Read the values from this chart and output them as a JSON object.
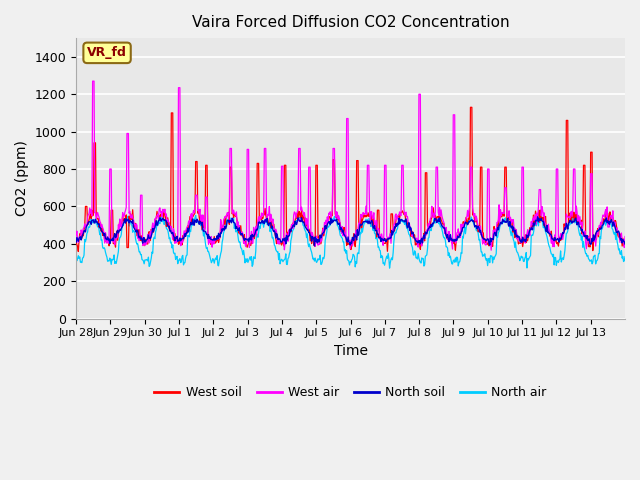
{
  "title": "Vaira Forced Diffusion CO2 Concentration",
  "xlabel": "Time",
  "ylabel": "CO2 (ppm)",
  "ylim": [
    0,
    1500
  ],
  "yticks": [
    0,
    200,
    400,
    600,
    800,
    1000,
    1200,
    1400
  ],
  "xtick_labels": [
    "Jun 28",
    "Jun 29",
    "Jun 30",
    "Jul 1",
    "Jul 2",
    "Jul 3",
    "Jul 4",
    "Jul 5",
    "Jul 6",
    "Jul 7",
    "Jul 8",
    "Jul 9",
    "Jul 10",
    "Jul 11",
    "Jul 12",
    "Jul 13"
  ],
  "xtick_positions": [
    0,
    1,
    2,
    3,
    4,
    5,
    6,
    7,
    8,
    9,
    10,
    11,
    12,
    13,
    14,
    15
  ],
  "legend_labels": [
    "West soil",
    "West air",
    "North soil",
    "North air"
  ],
  "line_colors": {
    "west_soil": "#ff0000",
    "west_air": "#ff00ff",
    "north_soil": "#0000cc",
    "north_air": "#00ccff"
  },
  "annotation_text": "VR_fd",
  "annotation_color": "#8B0000",
  "annotation_bg": "#ffff99",
  "annotation_edge": "#8B6914",
  "plot_bg": "#e8e8e8",
  "fig_bg": "#f0f0f0",
  "grid_color": "#ffffff",
  "title_color": "#000000",
  "n_days": 16,
  "pts_per_day": 48
}
